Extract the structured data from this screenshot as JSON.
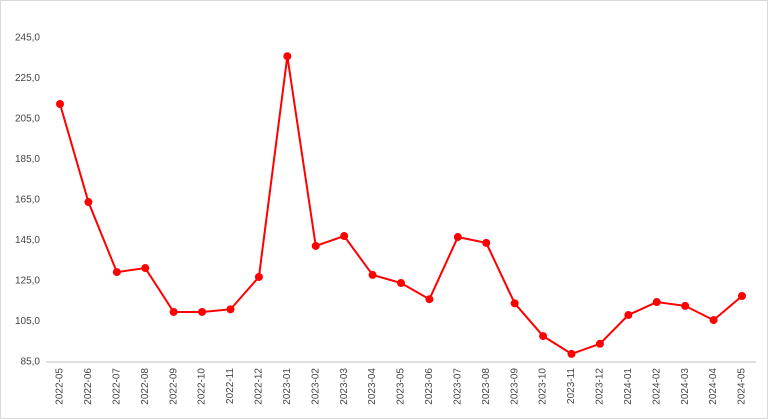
{
  "chart_data": {
    "type": "line",
    "categories": [
      "2022-05",
      "2022-06",
      "2022-07",
      "2022-08",
      "2022-09",
      "2022-10",
      "2022-11",
      "2022-12",
      "2023-01",
      "2023-02",
      "2023-03",
      "2023-04",
      "2023-05",
      "2023-06",
      "2023-07",
      "2023-08",
      "2023-09",
      "2023-10",
      "2023-11",
      "2023-12",
      "2024-01",
      "2024-02",
      "2024-03",
      "2024-04",
      "2024-05"
    ],
    "series": [
      {
        "color": "#ff0000",
        "values": [
          212.4,
          164.0,
          129.4,
          131.4,
          109.7,
          109.7,
          111.0,
          127.0,
          236.0,
          142.3,
          147.2,
          128.0,
          124.0,
          116.0,
          146.7,
          143.8,
          114.0,
          97.8,
          89.0,
          94.0,
          108.2,
          114.6,
          112.7,
          105.7,
          117.6
        ]
      }
    ],
    "ylim": [
      85,
      245
    ],
    "yticks": [
      {
        "value": 85,
        "label": "85,0"
      },
      {
        "value": 105,
        "label": "105,0"
      },
      {
        "value": 125,
        "label": "125,0"
      },
      {
        "value": 145,
        "label": "145,0"
      },
      {
        "value": 165,
        "label": "165,0"
      },
      {
        "value": 185,
        "label": "185,0"
      },
      {
        "value": 205,
        "label": "205,0"
      },
      {
        "value": 225,
        "label": "225,0"
      },
      {
        "value": 245,
        "label": "245,0"
      }
    ],
    "grid": false
  }
}
